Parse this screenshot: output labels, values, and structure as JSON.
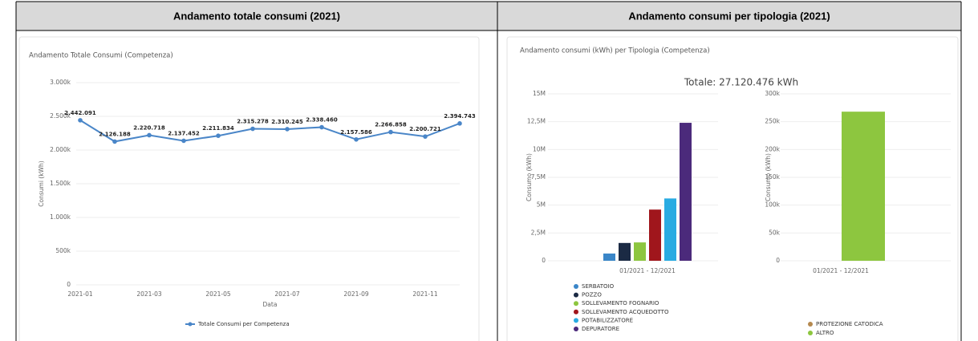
{
  "headers": [
    "Andamento totale consumi (2021)",
    "Andamento consumi per tipologia (2021)"
  ],
  "chart_data": [
    {
      "type": "line",
      "title": "Andamento Totale Consumi (Competenza)",
      "y_label": "Consumi (kWh)",
      "x_label": "Data",
      "categories": [
        "2021-01",
        null,
        "2021-03",
        null,
        "2021-05",
        null,
        "2021-07",
        null,
        "2021-09",
        null,
        "2021-11",
        null
      ],
      "series": [
        {
          "name": "Totale Consumi per Competenza",
          "color": "#4a86c8",
          "values": [
            2442091,
            2126188,
            2220718,
            2137452,
            2211834,
            2315278,
            2310245,
            2338460,
            2157586,
            2266858,
            2200721,
            2394743
          ],
          "value_labels": [
            "2.442.091",
            "2.126.188",
            "2.220.718",
            "2.137.452",
            "2.211.834",
            "2.315.278",
            "2.310.245",
            "2.338.460",
            "2.157.586",
            "2.266.858",
            "2.200.721",
            "2.394.743"
          ]
        }
      ],
      "ylim": [
        0,
        3000000
      ],
      "yticks": [
        0,
        {
          "value": 500000,
          "label": "500k"
        },
        {
          "value": 1000000,
          "label": "1.000k"
        },
        {
          "value": 1500000,
          "label": "1.500k"
        },
        {
          "value": 2000000,
          "label": "2.000k"
        },
        {
          "value": 2500000,
          "label": "2.500k"
        },
        {
          "value": 3000000,
          "label": "3.000k"
        }
      ],
      "grid": true
    },
    {
      "type": "bar",
      "title": "Andamento consumi (kWh) per Tipologia (Competenza)",
      "subtitle": "Totale: 27.120.476 kWh",
      "y_label": "Consumo (kWh)",
      "categories": [
        "01/2021 - 12/2021"
      ],
      "series": [
        {
          "name": "SERBATOIO",
          "color": "#3a86c8",
          "values": [
            650000
          ]
        },
        {
          "name": "POZZO",
          "color": "#1b2a44",
          "values": [
            1600000
          ]
        },
        {
          "name": "SOLLEVAMENTO FOGNARIO",
          "color": "#8dc63f",
          "values": [
            1650000
          ]
        },
        {
          "name": "SOLLEVAMENTO ACQUEDOTTO",
          "color": "#a0161c",
          "values": [
            4600000
          ]
        },
        {
          "name": "POTABILIZZATORE",
          "color": "#29abe2",
          "values": [
            5600000
          ]
        },
        {
          "name": "DEPURATORE",
          "color": "#4b2a7b",
          "values": [
            12400000
          ]
        }
      ],
      "ylim": [
        0,
        15000000
      ],
      "yticks": [
        0,
        {
          "value": 2500000,
          "label": "2,5M"
        },
        {
          "value": 5000000,
          "label": "5M"
        },
        {
          "value": 7500000,
          "label": "7,5M"
        },
        {
          "value": 10000000,
          "label": "10M"
        },
        {
          "value": 12500000,
          "label": "12,5M"
        },
        {
          "value": 15000000,
          "label": "15M"
        }
      ],
      "grid": true
    },
    {
      "type": "bar",
      "y_label": "Consumo (kWh)",
      "categories": [
        "01/2021 - 12/2021"
      ],
      "series": [
        {
          "name": "PROTEZIONE CATODICA",
          "color": "#b5894f",
          "values": [
            0
          ]
        },
        {
          "name": "ALTRO",
          "color": "#8dc63f",
          "values": [
            268000
          ]
        }
      ],
      "ylim": [
        0,
        300000
      ],
      "yticks": [
        0,
        {
          "value": 50000,
          "label": "50k"
        },
        {
          "value": 100000,
          "label": "100k"
        },
        {
          "value": 150000,
          "label": "150k"
        },
        {
          "value": 200000,
          "label": "200k"
        },
        {
          "value": 250000,
          "label": "250k"
        },
        {
          "value": 300000,
          "label": "300k"
        }
      ],
      "grid": true
    }
  ]
}
